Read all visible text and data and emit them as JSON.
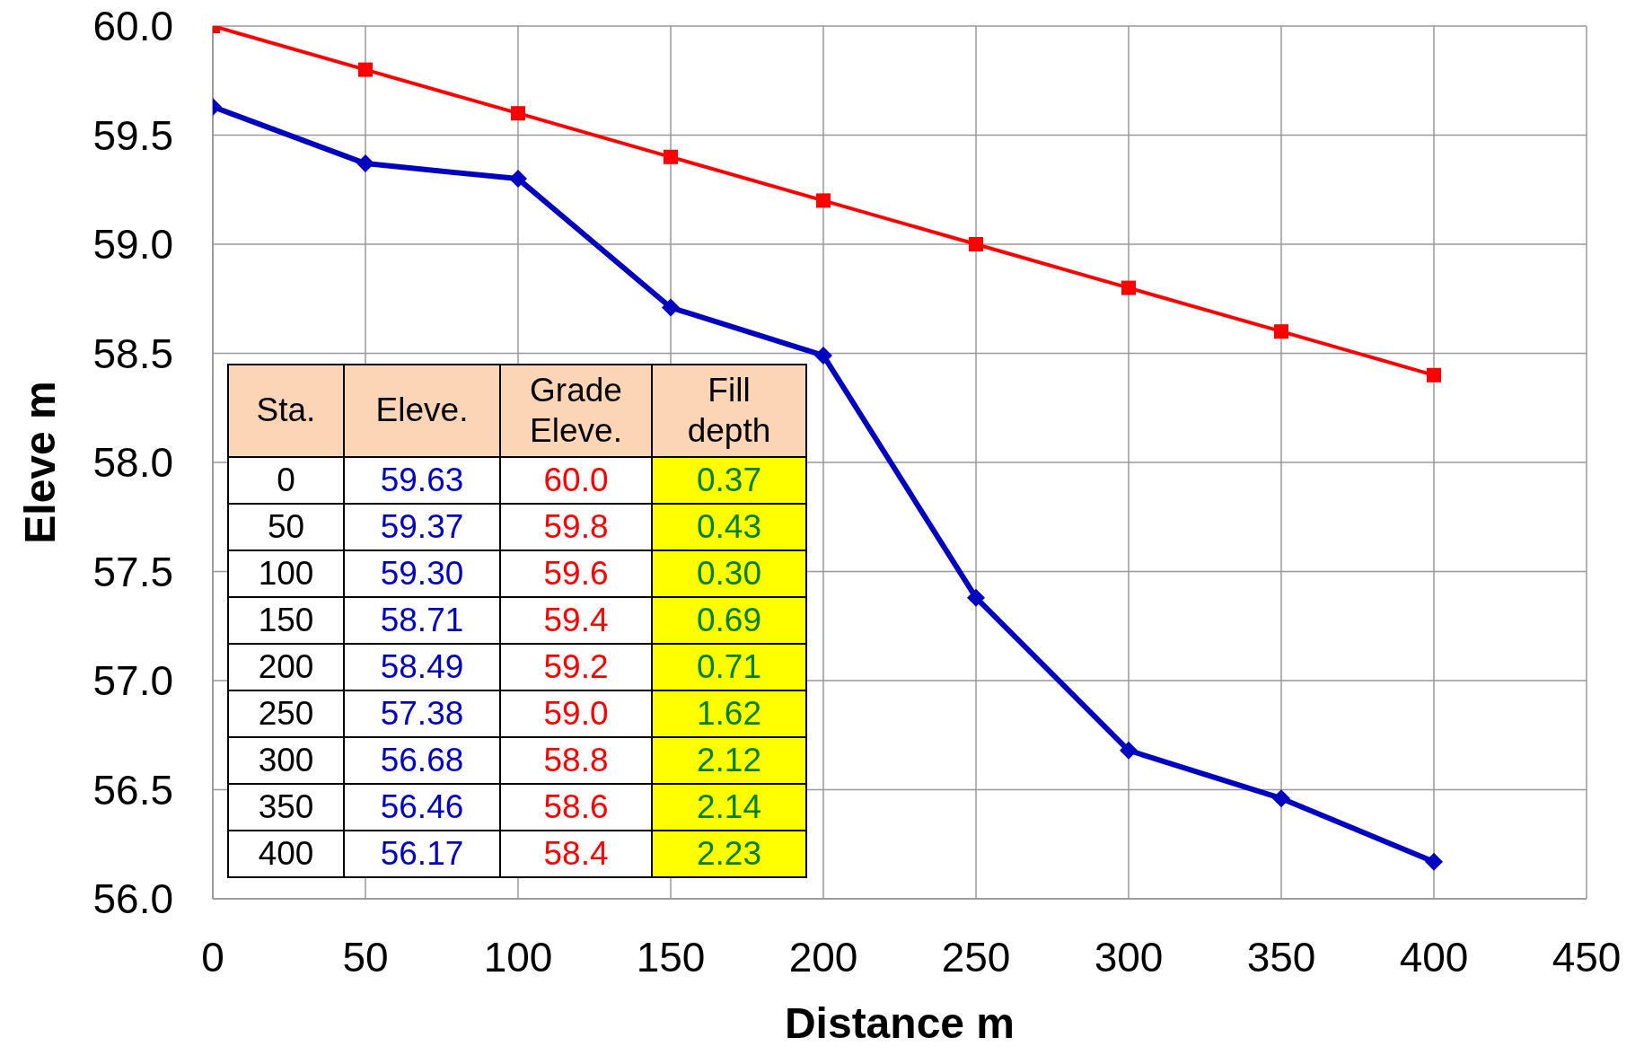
{
  "chart_data": {
    "type": "line",
    "xlabel": "Distance  m",
    "ylabel": "Eleve  m",
    "x": [
      0,
      50,
      100,
      150,
      200,
      250,
      300,
      350,
      400
    ],
    "series": [
      {
        "color": "#0000c0",
        "marker": "diamond",
        "values": [
          59.63,
          59.37,
          59.3,
          58.71,
          58.49,
          57.38,
          56.68,
          56.46,
          56.17
        ]
      },
      {
        "color": "#ff0000",
        "marker": "square",
        "values": [
          60.0,
          59.8,
          59.6,
          59.4,
          59.2,
          59.0,
          58.8,
          58.6,
          58.4
        ]
      }
    ],
    "xlim": [
      0,
      450
    ],
    "xticks": [
      0,
      50,
      100,
      150,
      200,
      250,
      300,
      350,
      400,
      450
    ],
    "ylim": [
      56,
      60
    ],
    "yticks": [
      {
        "value": 56,
        "label": "56.0"
      },
      {
        "value": 56.5,
        "label": "56.5"
      },
      {
        "value": 57,
        "label": "57.0"
      },
      {
        "value": 57.5,
        "label": "57.5"
      },
      {
        "value": 58,
        "label": "58.0"
      },
      {
        "value": 58.5,
        "label": "58.5"
      },
      {
        "value": 59,
        "label": "59.0"
      },
      {
        "value": 59.5,
        "label": "59.5"
      },
      {
        "value": 60,
        "label": "60.0"
      }
    ],
    "grid": true,
    "line_style": "solid",
    "annotations": [
      "Sta.",
      "Eleve.",
      "Grade Eleve.",
      "Fill depth",
      "0",
      "59.63",
      "60.0",
      "0.37",
      "50",
      "59.37",
      "59.8",
      "0.43",
      "100",
      "59.30",
      "59.6",
      "0.30",
      "150",
      "58.71",
      "59.4",
      "0.69",
      "200",
      "58.49",
      "59.2",
      "0.71",
      "250",
      "57.38",
      "59.0",
      "1.62",
      "300",
      "56.68",
      "58.8",
      "2.12",
      "350",
      "56.46",
      "58.6",
      "2.14",
      "400",
      "56.17",
      "58.4",
      "2.23"
    ]
  }
}
